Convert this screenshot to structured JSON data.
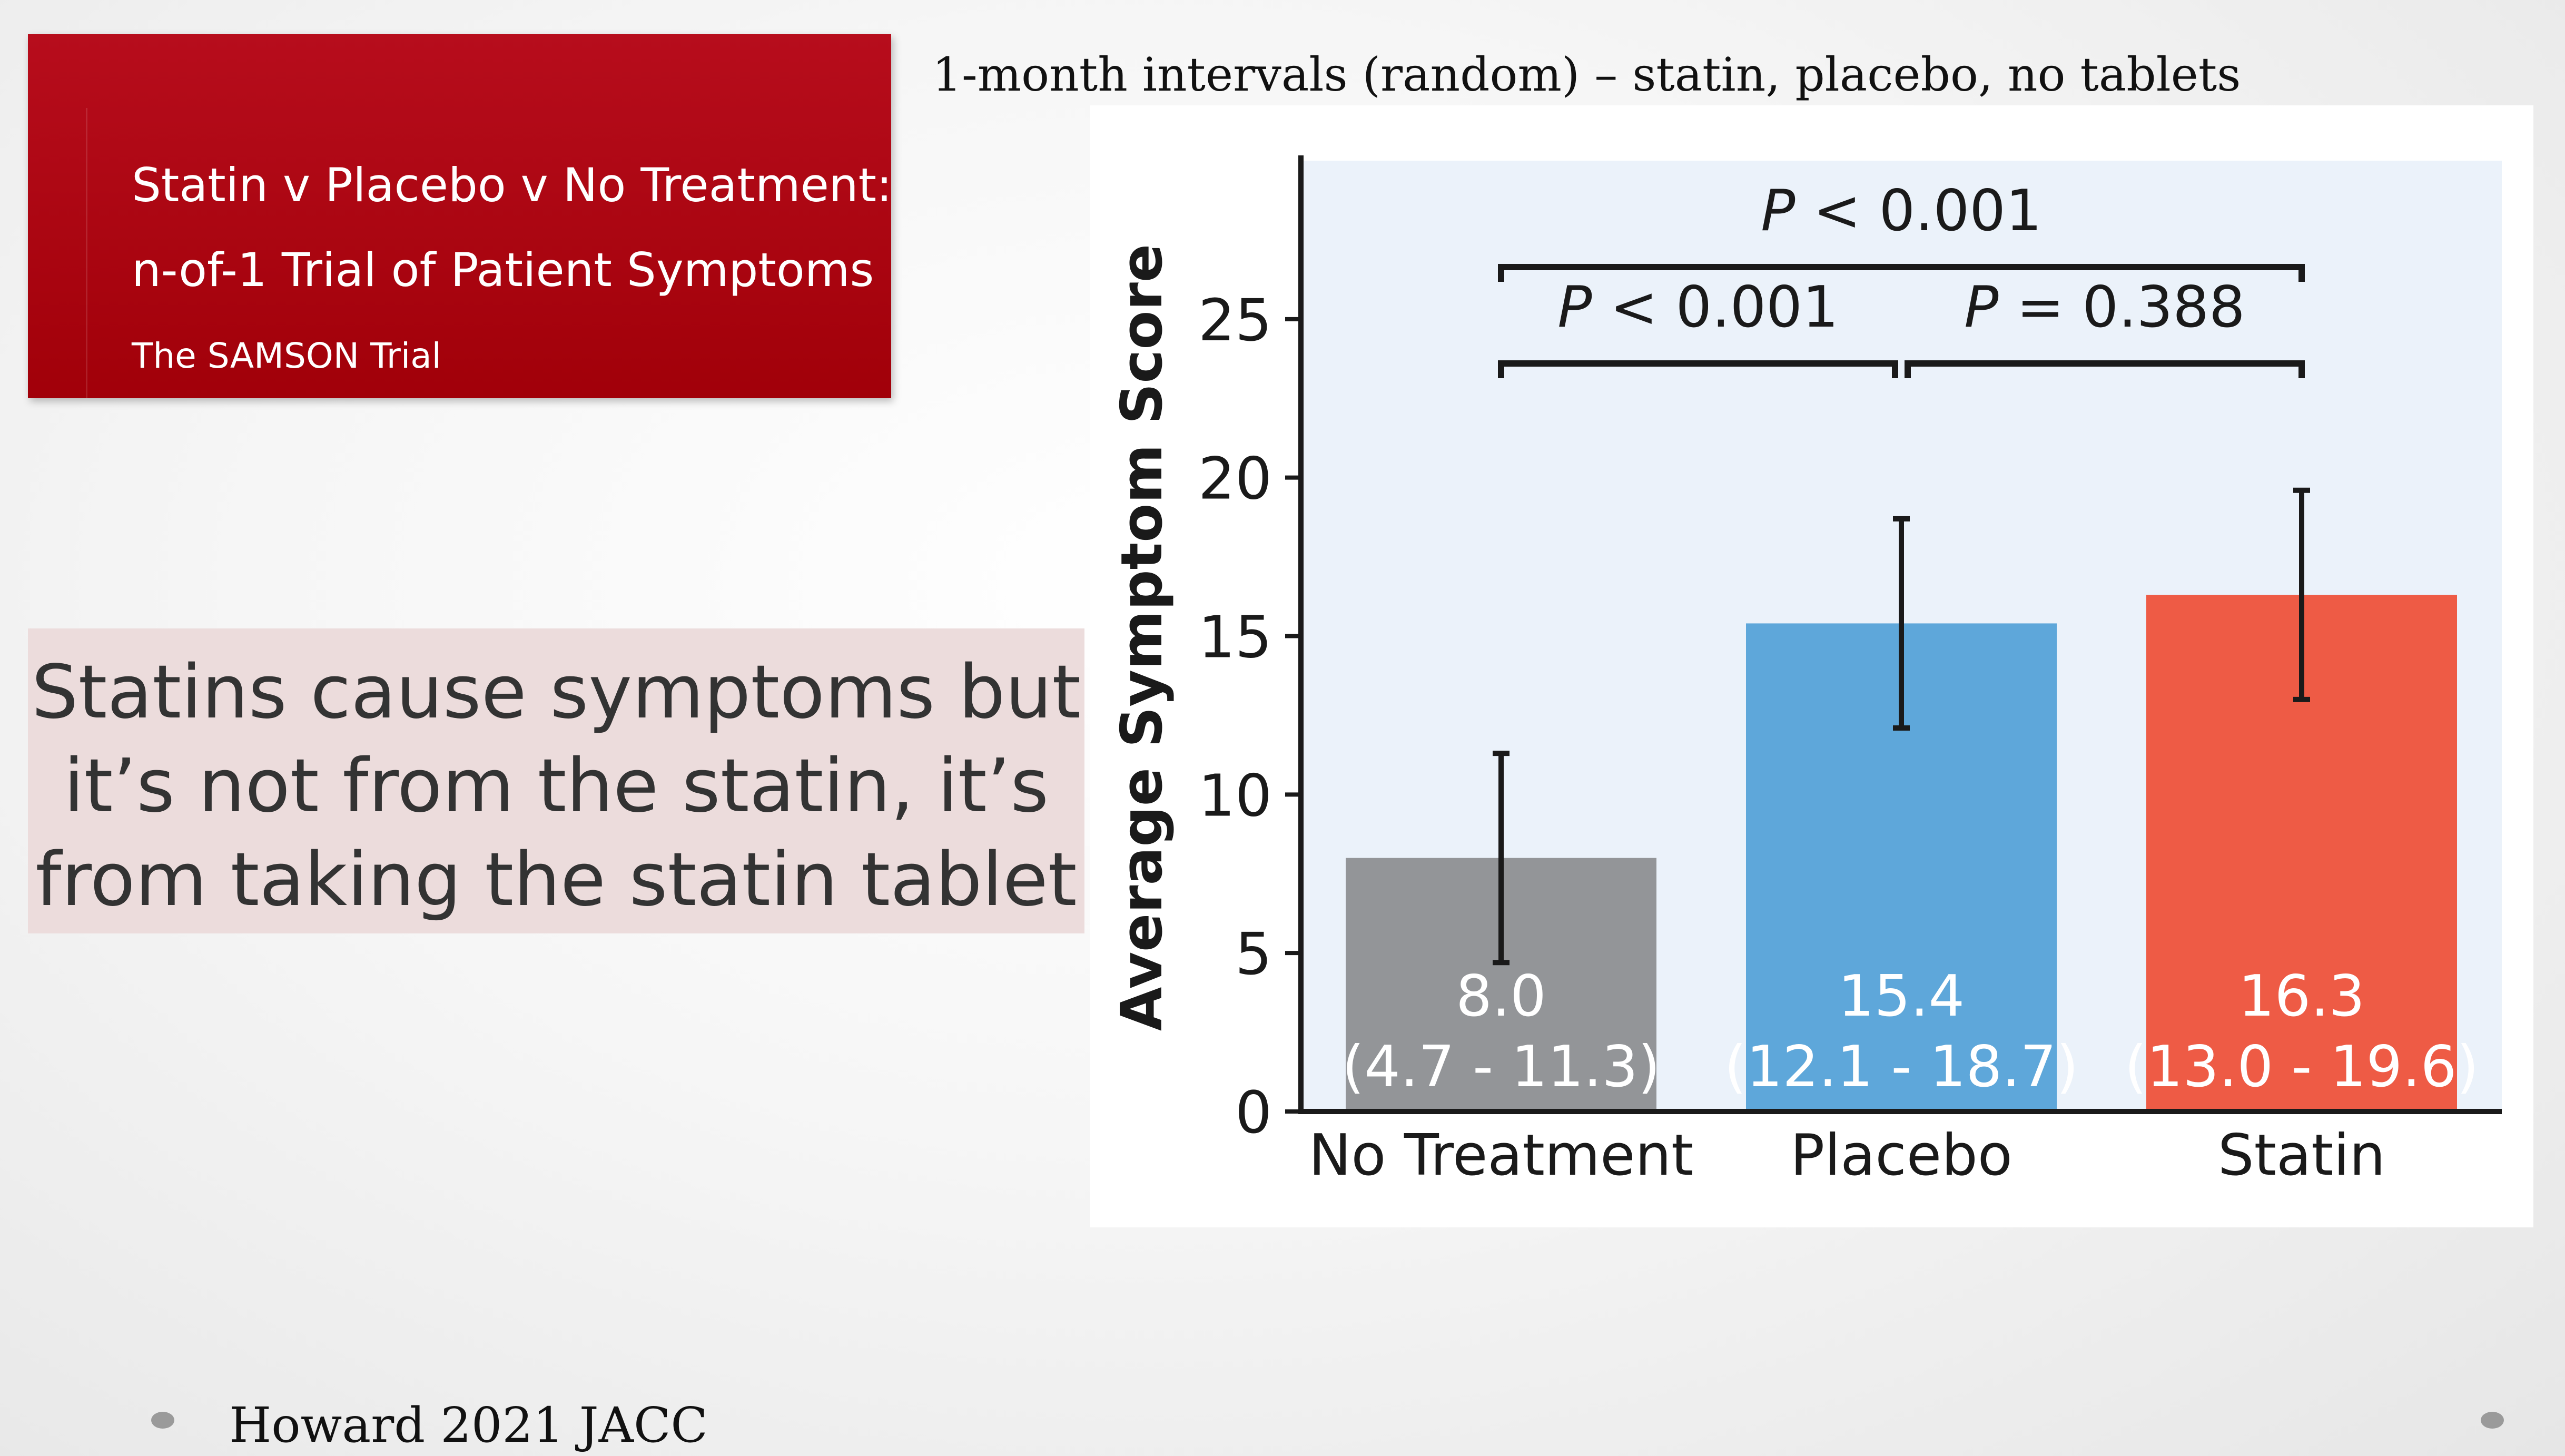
{
  "title_box": {
    "line1": "Statin v Placebo v No Treatment:",
    "line2": "n-of-1 Trial of Patient Symptoms",
    "line3": "The SAMSON Trial"
  },
  "subtitle": "1-month intervals (random) – statin, placebo, no tablets",
  "quote": {
    "line1": "Statins cause symptoms but",
    "line2": "it’s not from the statin, it’s",
    "line3": "from taking the statin tablet"
  },
  "citation": "Howard 2021 JACC",
  "chart_data": {
    "type": "bar",
    "categories": [
      "No Treatment",
      "Placebo",
      "Statin"
    ],
    "values": [
      8.0,
      15.4,
      16.3
    ],
    "ci": [
      [
        4.7,
        11.3
      ],
      [
        12.1,
        18.7
      ],
      [
        13.0,
        19.6
      ]
    ],
    "value_labels": [
      "8.0",
      "15.4",
      "16.3"
    ],
    "ci_labels": [
      "(4.7 - 11.3)",
      "(12.1 - 18.7)",
      "(13.0 - 19.6)"
    ],
    "colors": [
      "#939598",
      "#5ea7da",
      "#ee5b45"
    ],
    "ylabel": "Average Symptom Score",
    "xlabel": "",
    "ylim": [
      0,
      30
    ],
    "yticks": [
      0,
      5,
      10,
      15,
      20,
      25
    ],
    "background": "#ebf2fa",
    "significance": [
      {
        "from": 0,
        "to": 1,
        "label_prefix": "P",
        "label_rest": " < 0.001"
      },
      {
        "from": 1,
        "to": 2,
        "label_prefix": "P",
        "label_rest": " = 0.388"
      },
      {
        "from": 0,
        "to": 2,
        "label_prefix": "P",
        "label_rest": " < 0.001"
      }
    ]
  }
}
